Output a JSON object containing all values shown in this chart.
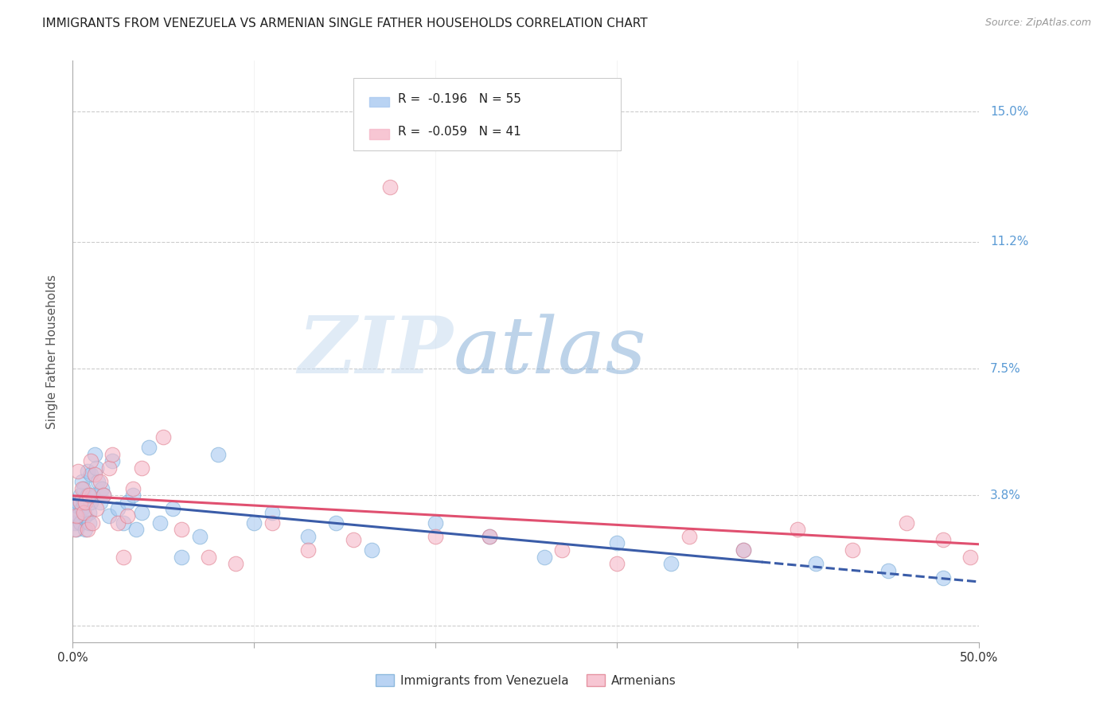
{
  "title": "IMMIGRANTS FROM VENEZUELA VS ARMENIAN SINGLE FATHER HOUSEHOLDS CORRELATION CHART",
  "source_text": "Source: ZipAtlas.com",
  "ylabel": "Single Father Households",
  "xlim": [
    0.0,
    0.5
  ],
  "ylim": [
    -0.005,
    0.165
  ],
  "ytick_positions": [
    0.0,
    0.038,
    0.075,
    0.112,
    0.15
  ],
  "ytick_labels": [
    "",
    "3.8%",
    "7.5%",
    "11.2%",
    "15.0%"
  ],
  "xtick_positions": [
    0.0,
    0.1,
    0.2,
    0.3,
    0.4,
    0.5
  ],
  "series1_label": "Immigrants from Venezuela",
  "series1_color": "#a8c8f0",
  "series1_edge": "#7baed6",
  "series1_R": -0.196,
  "series1_N": 55,
  "series1_trend_color": "#3a5ca8",
  "series2_label": "Armenians",
  "series2_color": "#f5b8c8",
  "series2_edge": "#e08090",
  "series2_R": -0.059,
  "series2_N": 41,
  "series2_trend_color": "#e05070",
  "watermark_zip": "ZIP",
  "watermark_atlas": "atlas",
  "title_fontsize": 11,
  "axis_label_color": "#5b9bd5",
  "background_color": "#ffffff",
  "venezuela_x": [
    0.001,
    0.001,
    0.002,
    0.002,
    0.003,
    0.003,
    0.004,
    0.004,
    0.005,
    0.005,
    0.006,
    0.006,
    0.007,
    0.007,
    0.008,
    0.008,
    0.009,
    0.009,
    0.01,
    0.01,
    0.011,
    0.012,
    0.013,
    0.014,
    0.015,
    0.016,
    0.017,
    0.02,
    0.022,
    0.025,
    0.028,
    0.03,
    0.033,
    0.035,
    0.038,
    0.042,
    0.048,
    0.055,
    0.06,
    0.07,
    0.08,
    0.1,
    0.11,
    0.13,
    0.145,
    0.165,
    0.2,
    0.23,
    0.26,
    0.3,
    0.33,
    0.37,
    0.41,
    0.45,
    0.48
  ],
  "venezuela_y": [
    0.03,
    0.033,
    0.028,
    0.035,
    0.032,
    0.036,
    0.038,
    0.03,
    0.042,
    0.034,
    0.04,
    0.036,
    0.032,
    0.028,
    0.038,
    0.045,
    0.033,
    0.03,
    0.044,
    0.036,
    0.038,
    0.05,
    0.046,
    0.042,
    0.036,
    0.04,
    0.038,
    0.032,
    0.048,
    0.034,
    0.03,
    0.036,
    0.038,
    0.028,
    0.033,
    0.052,
    0.03,
    0.034,
    0.02,
    0.026,
    0.05,
    0.03,
    0.033,
    0.026,
    0.03,
    0.022,
    0.03,
    0.026,
    0.02,
    0.024,
    0.018,
    0.022,
    0.018,
    0.016,
    0.014
  ],
  "armenian_x": [
    0.001,
    0.002,
    0.003,
    0.004,
    0.005,
    0.006,
    0.007,
    0.008,
    0.009,
    0.01,
    0.011,
    0.012,
    0.013,
    0.015,
    0.017,
    0.02,
    0.022,
    0.025,
    0.028,
    0.03,
    0.033,
    0.038,
    0.05,
    0.06,
    0.075,
    0.09,
    0.11,
    0.13,
    0.155,
    0.175,
    0.2,
    0.23,
    0.27,
    0.3,
    0.34,
    0.37,
    0.4,
    0.43,
    0.46,
    0.48,
    0.495
  ],
  "armenian_y": [
    0.028,
    0.032,
    0.045,
    0.036,
    0.04,
    0.033,
    0.036,
    0.028,
    0.038,
    0.048,
    0.03,
    0.044,
    0.034,
    0.042,
    0.038,
    0.046,
    0.05,
    0.03,
    0.02,
    0.032,
    0.04,
    0.046,
    0.055,
    0.028,
    0.02,
    0.018,
    0.03,
    0.022,
    0.025,
    0.128,
    0.026,
    0.026,
    0.022,
    0.018,
    0.026,
    0.022,
    0.028,
    0.022,
    0.03,
    0.025,
    0.02
  ]
}
